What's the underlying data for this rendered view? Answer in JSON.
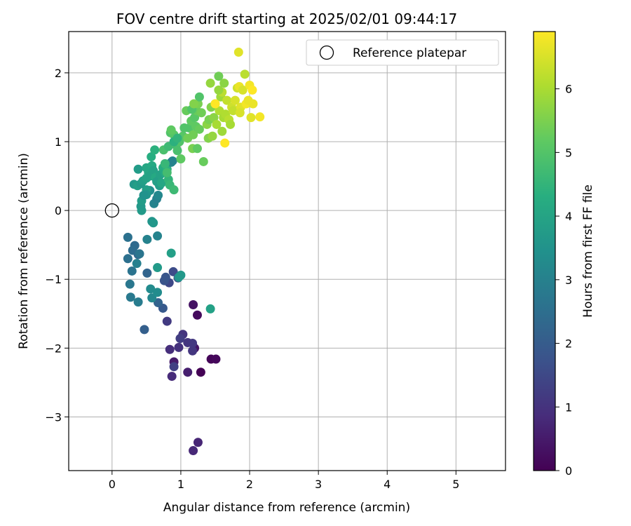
{
  "chart_data": {
    "type": "scatter",
    "title": "FOV centre drift starting at 2025/02/01 09:44:17",
    "xlabel": "Angular distance from reference (arcmin)",
    "ylabel": "Rotation from reference (arcmin)",
    "xlim": [
      -0.63,
      5.72
    ],
    "ylim": [
      -3.78,
      2.6
    ],
    "xticks": [
      0,
      1,
      2,
      3,
      4,
      5
    ],
    "yticks": [
      -3,
      -2,
      -1,
      0,
      1,
      2
    ],
    "xticklabels": [
      "0",
      "1",
      "2",
      "3",
      "4",
      "5"
    ],
    "yticklabels": [
      "−3",
      "−2",
      "−1",
      "0",
      "1",
      "2"
    ],
    "grid": true,
    "legend": {
      "placement": "top-right",
      "entries": [
        "Reference platepar"
      ]
    },
    "reference_point": {
      "x": 0,
      "y": 0,
      "label": "Reference platepar"
    },
    "colorbar": {
      "label": "Hours from first FF file",
      "colormap": "viridis",
      "range": [
        0,
        6.9
      ],
      "ticks": [
        0,
        1,
        2,
        3,
        4,
        5,
        6
      ],
      "ticklabels": [
        "0",
        "1",
        "2",
        "3",
        "4",
        "5",
        "6"
      ]
    },
    "points": [
      {
        "x": 1.29,
        "y": -2.35,
        "c": 0.02
      },
      {
        "x": 1.44,
        "y": -2.16,
        "c": 0.08
      },
      {
        "x": 1.51,
        "y": -2.16,
        "c": 0.15
      },
      {
        "x": 1.24,
        "y": -1.52,
        "c": 0.2
      },
      {
        "x": 1.18,
        "y": -1.37,
        "c": 0.35
      },
      {
        "x": 1.2,
        "y": -2.0,
        "c": 0.4
      },
      {
        "x": 0.9,
        "y": -2.2,
        "c": 0.5
      },
      {
        "x": 1.1,
        "y": -2.35,
        "c": 0.6
      },
      {
        "x": 1.25,
        "y": -3.37,
        "c": 0.75
      },
      {
        "x": 1.18,
        "y": -3.49,
        "c": 0.8
      },
      {
        "x": 0.87,
        "y": -2.41,
        "c": 0.85
      },
      {
        "x": 0.84,
        "y": -2.02,
        "c": 0.9
      },
      {
        "x": 0.97,
        "y": -1.99,
        "c": 1.0
      },
      {
        "x": 1.03,
        "y": -1.8,
        "c": 1.05
      },
      {
        "x": 1.1,
        "y": -1.92,
        "c": 1.1
      },
      {
        "x": 1.17,
        "y": -2.04,
        "c": 1.1
      },
      {
        "x": 1.17,
        "y": -1.93,
        "c": 1.15
      },
      {
        "x": 0.8,
        "y": -1.61,
        "c": 1.2
      },
      {
        "x": 0.99,
        "y": -1.86,
        "c": 1.25
      },
      {
        "x": 0.9,
        "y": -2.27,
        "c": 1.3
      },
      {
        "x": 0.83,
        "y": -1.05,
        "c": 1.5
      },
      {
        "x": 0.89,
        "y": -0.89,
        "c": 1.6
      },
      {
        "x": 0.96,
        "y": -0.98,
        "c": 1.7
      },
      {
        "x": 0.76,
        "y": -1.02,
        "c": 1.8
      },
      {
        "x": 0.78,
        "y": -0.97,
        "c": 1.85
      },
      {
        "x": 0.74,
        "y": -1.42,
        "c": 1.95
      },
      {
        "x": 0.47,
        "y": -1.73,
        "c": 2.1
      },
      {
        "x": 0.67,
        "y": -1.34,
        "c": 2.2
      },
      {
        "x": 0.51,
        "y": -0.91,
        "c": 2.25
      },
      {
        "x": 0.38,
        "y": -0.64,
        "c": 2.3
      },
      {
        "x": 0.33,
        "y": -0.51,
        "c": 2.4
      },
      {
        "x": 0.3,
        "y": -0.58,
        "c": 2.45
      },
      {
        "x": 0.23,
        "y": -0.7,
        "c": 2.55
      },
      {
        "x": 0.23,
        "y": -0.39,
        "c": 2.6
      },
      {
        "x": 0.29,
        "y": -0.88,
        "c": 2.65
      },
      {
        "x": 0.4,
        "y": -0.63,
        "c": 2.7
      },
      {
        "x": 0.26,
        "y": -1.07,
        "c": 2.75
      },
      {
        "x": 0.27,
        "y": -1.26,
        "c": 2.8
      },
      {
        "x": 0.38,
        "y": -1.33,
        "c": 2.9
      },
      {
        "x": 0.36,
        "y": -0.77,
        "c": 3.0
      },
      {
        "x": 0.51,
        "y": -0.42,
        "c": 3.05
      },
      {
        "x": 0.66,
        "y": -0.37,
        "c": 3.1
      },
      {
        "x": 0.58,
        "y": -1.27,
        "c": 3.2
      },
      {
        "x": 0.56,
        "y": -1.14,
        "c": 3.3
      },
      {
        "x": 0.66,
        "y": -1.19,
        "c": 3.35
      },
      {
        "x": 0.97,
        "y": -0.97,
        "c": 3.6
      },
      {
        "x": 1.0,
        "y": -0.94,
        "c": 3.7
      },
      {
        "x": 0.66,
        "y": -0.83,
        "c": 3.75
      },
      {
        "x": 0.86,
        "y": -0.62,
        "c": 3.9
      },
      {
        "x": 1.43,
        "y": -1.43,
        "c": 3.95
      },
      {
        "x": 0.58,
        "y": -0.16,
        "c": 3.6
      },
      {
        "x": 0.6,
        "y": -0.18,
        "c": 3.65
      },
      {
        "x": 0.42,
        "y": 0.06,
        "c": 3.7
      },
      {
        "x": 0.43,
        "y": 0.0,
        "c": 3.75
      },
      {
        "x": 0.43,
        "y": 0.14,
        "c": 3.8
      },
      {
        "x": 0.61,
        "y": 0.1,
        "c": 3.1
      },
      {
        "x": 0.65,
        "y": 0.17,
        "c": 3.0
      },
      {
        "x": 0.67,
        "y": 0.22,
        "c": 3.2
      },
      {
        "x": 0.55,
        "y": 0.29,
        "c": 3.4
      },
      {
        "x": 0.5,
        "y": 0.3,
        "c": 3.9
      },
      {
        "x": 0.5,
        "y": 0.23,
        "c": 3.6
      },
      {
        "x": 0.46,
        "y": 0.22,
        "c": 3.5
      },
      {
        "x": 0.32,
        "y": 0.38,
        "c": 3.7
      },
      {
        "x": 0.37,
        "y": 0.36,
        "c": 3.9
      },
      {
        "x": 0.38,
        "y": 0.6,
        "c": 3.8
      },
      {
        "x": 0.42,
        "y": 0.39,
        "c": 3.75
      },
      {
        "x": 0.45,
        "y": 0.43,
        "c": 3.9
      },
      {
        "x": 0.5,
        "y": 0.47,
        "c": 4.0
      },
      {
        "x": 0.53,
        "y": 0.55,
        "c": 4.1
      },
      {
        "x": 0.55,
        "y": 0.5,
        "c": 4.0
      },
      {
        "x": 0.5,
        "y": 0.62,
        "c": 4.1
      },
      {
        "x": 0.58,
        "y": 0.65,
        "c": 4.2
      },
      {
        "x": 0.6,
        "y": 0.58,
        "c": 4.0
      },
      {
        "x": 0.57,
        "y": 0.78,
        "c": 4.3
      },
      {
        "x": 0.62,
        "y": 0.88,
        "c": 4.4
      },
      {
        "x": 0.63,
        "y": 0.48,
        "c": 4.2
      },
      {
        "x": 0.65,
        "y": 0.42,
        "c": 3.9
      },
      {
        "x": 0.69,
        "y": 0.36,
        "c": 3.8
      },
      {
        "x": 0.72,
        "y": 0.4,
        "c": 4.1
      },
      {
        "x": 0.7,
        "y": 0.52,
        "c": 4.0
      },
      {
        "x": 0.74,
        "y": 0.62,
        "c": 4.3
      },
      {
        "x": 0.77,
        "y": 0.55,
        "c": 4.2
      },
      {
        "x": 0.8,
        "y": 0.6,
        "c": 4.4
      },
      {
        "x": 0.82,
        "y": 0.45,
        "c": 4.5
      },
      {
        "x": 0.84,
        "y": 0.37,
        "c": 4.6
      },
      {
        "x": 0.86,
        "y": 0.7,
        "c": 3.2
      },
      {
        "x": 0.88,
        "y": 0.72,
        "c": 3.1
      },
      {
        "x": 0.9,
        "y": 0.3,
        "c": 4.7
      },
      {
        "x": 0.77,
        "y": 0.68,
        "c": 4.6
      },
      {
        "x": 0.8,
        "y": 0.55,
        "c": 4.8
      },
      {
        "x": 0.75,
        "y": 0.88,
        "c": 4.9
      },
      {
        "x": 0.82,
        "y": 0.93,
        "c": 4.7
      },
      {
        "x": 0.85,
        "y": 1.13,
        "c": 5.0
      },
      {
        "x": 0.9,
        "y": 1.1,
        "c": 5.1
      },
      {
        "x": 0.93,
        "y": 0.95,
        "c": 4.8
      },
      {
        "x": 0.95,
        "y": 0.87,
        "c": 4.9
      },
      {
        "x": 0.98,
        "y": 1.0,
        "c": 5.0
      },
      {
        "x": 1.0,
        "y": 0.75,
        "c": 5.2
      },
      {
        "x": 1.03,
        "y": 1.08,
        "c": 5.1
      },
      {
        "x": 1.05,
        "y": 1.2,
        "c": 5.0
      },
      {
        "x": 0.86,
        "y": 1.17,
        "c": 5.2
      },
      {
        "x": 0.9,
        "y": 1.0,
        "c": 4.4
      },
      {
        "x": 0.95,
        "y": 1.05,
        "c": 4.5
      },
      {
        "x": 1.08,
        "y": 1.45,
        "c": 5.3
      },
      {
        "x": 1.12,
        "y": 1.2,
        "c": 5.0
      },
      {
        "x": 1.15,
        "y": 1.3,
        "c": 5.2
      },
      {
        "x": 1.18,
        "y": 1.1,
        "c": 5.4
      },
      {
        "x": 1.2,
        "y": 1.35,
        "c": 5.1
      },
      {
        "x": 1.23,
        "y": 1.45,
        "c": 5.3
      },
      {
        "x": 1.25,
        "y": 1.55,
        "c": 5.5
      },
      {
        "x": 1.27,
        "y": 1.65,
        "c": 5.0
      },
      {
        "x": 1.3,
        "y": 1.42,
        "c": 5.4
      },
      {
        "x": 1.22,
        "y": 1.22,
        "c": 5.2
      },
      {
        "x": 1.27,
        "y": 1.18,
        "c": 5.3
      },
      {
        "x": 1.17,
        "y": 0.9,
        "c": 5.5
      },
      {
        "x": 1.24,
        "y": 0.9,
        "c": 5.2
      },
      {
        "x": 1.33,
        "y": 0.71,
        "c": 5.3
      },
      {
        "x": 1.1,
        "y": 1.05,
        "c": 5.4
      },
      {
        "x": 1.16,
        "y": 1.47,
        "c": 5.0
      },
      {
        "x": 1.19,
        "y": 1.55,
        "c": 5.6
      },
      {
        "x": 1.4,
        "y": 1.05,
        "c": 5.6
      },
      {
        "x": 1.38,
        "y": 1.25,
        "c": 5.7
      },
      {
        "x": 1.41,
        "y": 1.32,
        "c": 5.5
      },
      {
        "x": 1.44,
        "y": 1.5,
        "c": 5.6
      },
      {
        "x": 1.46,
        "y": 1.08,
        "c": 5.8
      },
      {
        "x": 1.48,
        "y": 1.35,
        "c": 5.7
      },
      {
        "x": 1.43,
        "y": 1.85,
        "c": 5.8
      },
      {
        "x": 1.5,
        "y": 1.55,
        "c": 5.9
      },
      {
        "x": 1.52,
        "y": 1.25,
        "c": 6.0
      },
      {
        "x": 1.55,
        "y": 1.95,
        "c": 5.4
      },
      {
        "x": 1.56,
        "y": 1.45,
        "c": 6.1
      },
      {
        "x": 1.58,
        "y": 1.65,
        "c": 5.9
      },
      {
        "x": 1.6,
        "y": 1.72,
        "c": 6.2
      },
      {
        "x": 1.62,
        "y": 1.35,
        "c": 6.0
      },
      {
        "x": 1.63,
        "y": 1.85,
        "c": 5.7
      },
      {
        "x": 1.65,
        "y": 1.4,
        "c": 6.1
      },
      {
        "x": 1.67,
        "y": 1.6,
        "c": 6.3
      },
      {
        "x": 1.7,
        "y": 1.32,
        "c": 6.2
      },
      {
        "x": 1.72,
        "y": 1.25,
        "c": 6.0
      },
      {
        "x": 1.74,
        "y": 1.5,
        "c": 6.4
      },
      {
        "x": 1.76,
        "y": 1.45,
        "c": 6.3
      },
      {
        "x": 1.79,
        "y": 1.6,
        "c": 6.5
      },
      {
        "x": 1.82,
        "y": 1.78,
        "c": 6.4
      },
      {
        "x": 1.84,
        "y": 2.3,
        "c": 6.6
      },
      {
        "x": 1.85,
        "y": 1.8,
        "c": 6.7
      },
      {
        "x": 1.87,
        "y": 1.5,
        "c": 6.6
      },
      {
        "x": 1.9,
        "y": 1.75,
        "c": 6.5
      },
      {
        "x": 1.93,
        "y": 1.98,
        "c": 6.2
      },
      {
        "x": 1.95,
        "y": 1.55,
        "c": 6.8
      },
      {
        "x": 1.98,
        "y": 1.6,
        "c": 6.7
      },
      {
        "x": 2.0,
        "y": 1.82,
        "c": 6.8
      },
      {
        "x": 2.02,
        "y": 1.35,
        "c": 6.6
      },
      {
        "x": 2.04,
        "y": 1.75,
        "c": 6.9
      },
      {
        "x": 2.05,
        "y": 1.55,
        "c": 6.7
      },
      {
        "x": 2.15,
        "y": 1.36,
        "c": 6.8
      },
      {
        "x": 1.64,
        "y": 0.98,
        "c": 6.9
      },
      {
        "x": 1.5,
        "y": 1.55,
        "c": 6.9
      },
      {
        "x": 1.86,
        "y": 1.42,
        "c": 6.5
      },
      {
        "x": 1.6,
        "y": 1.15,
        "c": 5.9
      },
      {
        "x": 1.55,
        "y": 1.75,
        "c": 5.8
      }
    ]
  }
}
